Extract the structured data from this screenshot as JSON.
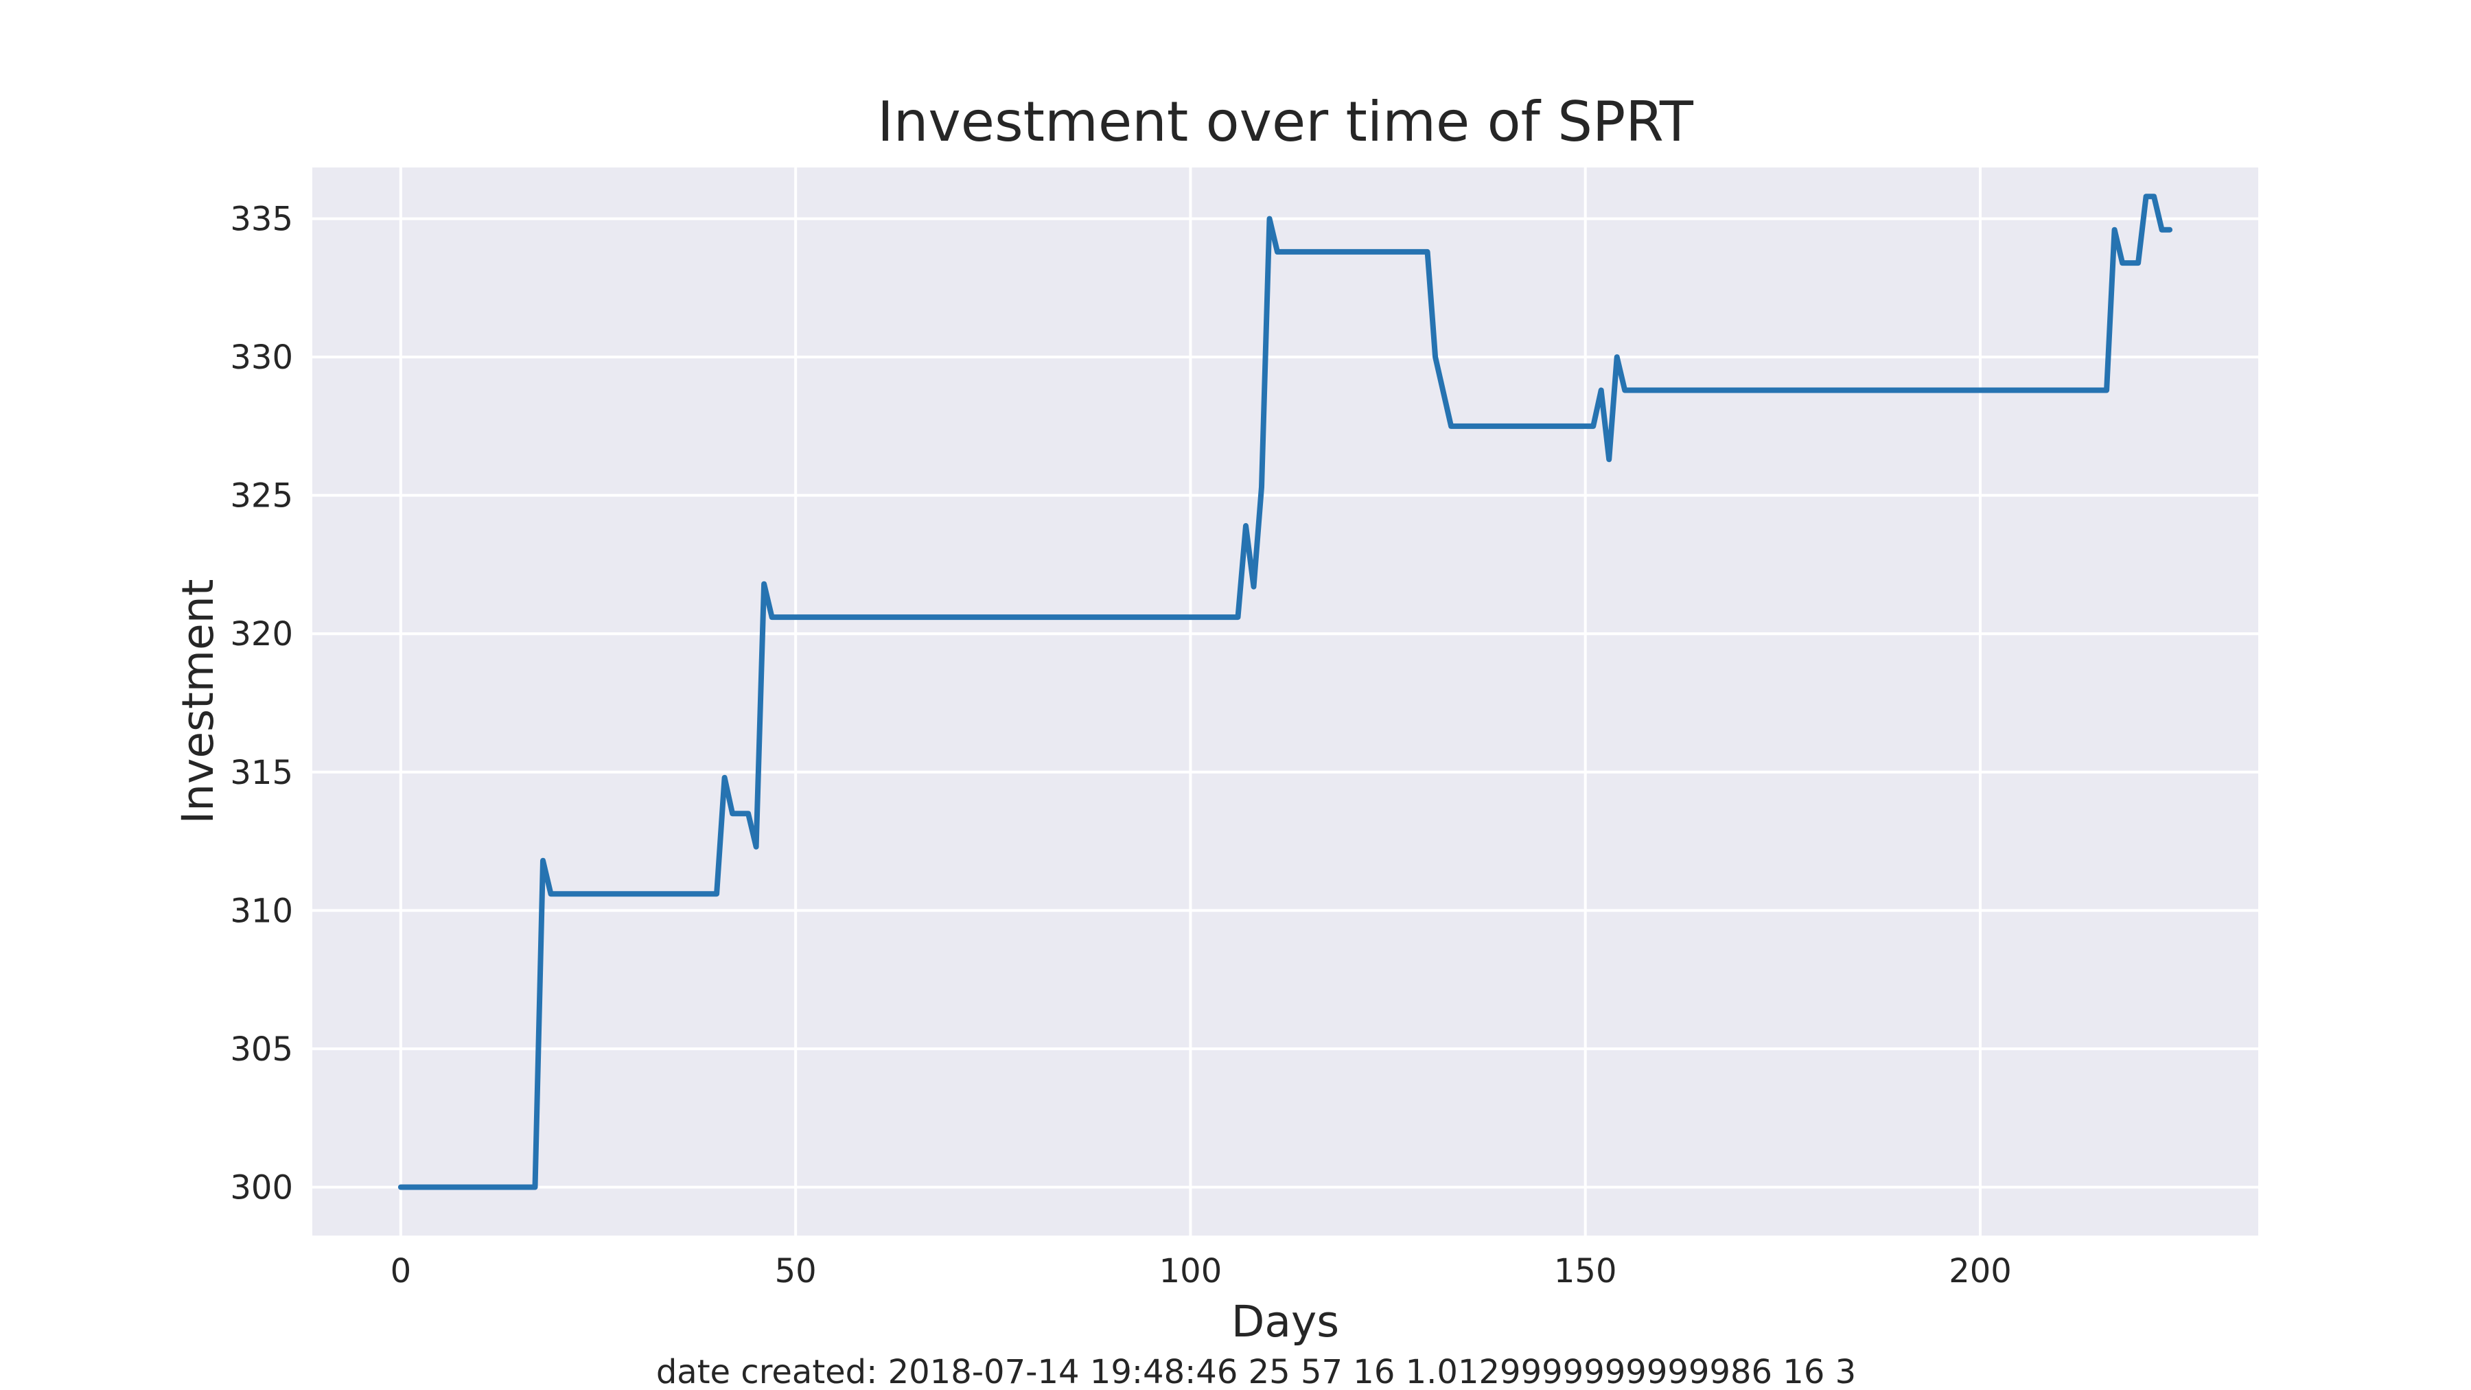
{
  "chart_data": {
    "type": "line",
    "title": "Investment over time of SPRT",
    "xlabel": "Days",
    "ylabel": "Investment",
    "xlim": [
      -11.2,
      235.2
    ],
    "ylim": [
      298.25,
      336.85
    ],
    "xticks": [
      0,
      50,
      100,
      150,
      200
    ],
    "yticks": [
      300,
      305,
      310,
      315,
      320,
      325,
      330,
      335
    ],
    "grid": true,
    "colors": {
      "plot_background": "#eaeaf2",
      "grid": "#ffffff",
      "line": "#2673b1",
      "text": "#262626"
    },
    "series": [
      {
        "x": [
          0,
          17,
          18,
          19,
          40,
          41,
          42,
          44,
          45,
          46,
          47,
          106,
          107,
          108,
          109,
          110,
          111,
          112,
          130,
          131,
          133,
          151,
          152,
          153,
          154,
          155,
          216,
          217,
          218,
          220,
          221,
          222,
          223,
          224
        ],
        "values": [
          300,
          300,
          311.8,
          310.6,
          310.6,
          314.8,
          313.5,
          313.5,
          312.3,
          321.8,
          320.6,
          320.6,
          323.9,
          321.7,
          325.3,
          335,
          333.8,
          333.8,
          333.8,
          330.0,
          327.5,
          327.5,
          328.8,
          326.3,
          330.0,
          328.8,
          328.8,
          334.6,
          333.4,
          333.4,
          335.8,
          335.8,
          334.6,
          334.6
        ]
      }
    ],
    "footer": "date created: 2018-07-14 19:48:46 25 57 16 1.0129999999999986 16 3"
  }
}
